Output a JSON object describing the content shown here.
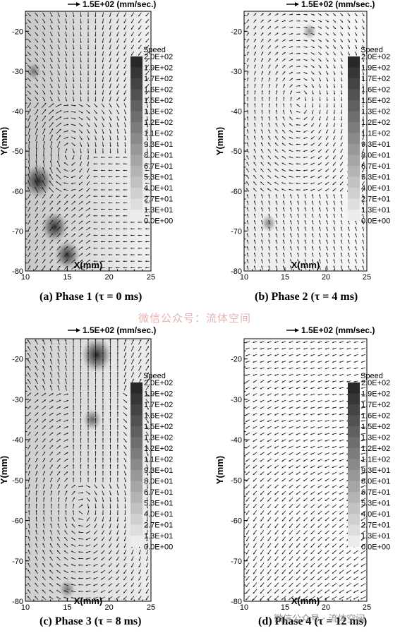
{
  "chart_data": [
    {
      "type": "vector-field",
      "caption": "(a) Phase 1 (τ = 0 ms)",
      "reference_vector": "1.5E+02 (mm/sec.)",
      "xlabel": "X(mm)",
      "ylabel": "Y(mm)",
      "xlim": [
        10,
        25
      ],
      "ylim": [
        -80,
        -15
      ],
      "x_ticks": [
        10,
        15,
        20,
        25
      ],
      "y_ticks": [
        -20,
        -30,
        -40,
        -50,
        -60,
        -70,
        -80
      ],
      "x_tick_labels": [
        "10",
        "15",
        "20",
        "25"
      ],
      "y_tick_labels": [
        "-20",
        "-30",
        "-40",
        "-50",
        "-60",
        "-70",
        "-80"
      ],
      "legend": {
        "title": "Speed",
        "levels": [
          "2.0E+02",
          "1.9E+02",
          "1.7E+02",
          "1.6E+02",
          "1.5E+02",
          "1.3E+02",
          "1.2E+02",
          "1.1E+02",
          "9.3E+01",
          "8.0E+01",
          "6.7E+01",
          "5.3E+01",
          "4.0E+01",
          "2.7E+01",
          "1.3E+01",
          "0.0E+00"
        ]
      },
      "speed_hotspots": [
        {
          "x": 11.5,
          "y": -57.5,
          "speed": 190
        },
        {
          "x": 13.5,
          "y": -69,
          "speed": 160
        },
        {
          "x": 15,
          "y": -76,
          "speed": 150
        },
        {
          "x": 11,
          "y": -30,
          "speed": 60
        }
      ]
    },
    {
      "type": "vector-field",
      "caption": "(b) Phase 2 (τ = 4 ms)",
      "reference_vector": "1.5E+02 (mm/sec.)",
      "xlabel": "X(mm)",
      "ylabel": "Y(mm)",
      "xlim": [
        10,
        25
      ],
      "ylim": [
        -80,
        -15
      ],
      "x_ticks": [
        10,
        15,
        20,
        25
      ],
      "y_ticks": [
        -20,
        -30,
        -40,
        -50,
        -60,
        -70,
        -80
      ],
      "x_tick_labels": [
        "10",
        "15",
        "20",
        "25"
      ],
      "y_tick_labels": [
        "-20",
        "-30",
        "-40",
        "-50",
        "-60",
        "-70",
        "-80"
      ],
      "legend": {
        "title": "Speed",
        "levels": [
          "2.0E+02",
          "1.9E+02",
          "1.7E+02",
          "1.6E+02",
          "1.5E+02",
          "1.3E+02",
          "1.2E+02",
          "1.1E+02",
          "9.3E+01",
          "8.0E+01",
          "6.7E+01",
          "5.3E+01",
          "4.0E+01",
          "2.7E+01",
          "1.3E+01",
          "0.0E+00"
        ]
      },
      "speed_hotspots": [
        {
          "x": 18,
          "y": -20,
          "speed": 50
        },
        {
          "x": 13,
          "y": -68,
          "speed": 60
        }
      ]
    },
    {
      "type": "vector-field",
      "caption": "(c) Phase 3 (τ = 8 ms)",
      "reference_vector": "1.5E+02 (mm/sec.)",
      "xlabel": "X(mm)",
      "ylabel": "Y(mm)",
      "xlim": [
        10,
        25
      ],
      "ylim": [
        -80,
        -15
      ],
      "x_ticks": [
        10,
        15,
        20,
        25
      ],
      "y_ticks": [
        -20,
        -30,
        -40,
        -50,
        -60,
        -70,
        -80
      ],
      "x_tick_labels": [
        "10",
        "15",
        "20",
        "25"
      ],
      "y_tick_labels": [
        "-20",
        "-30",
        "-40",
        "-50",
        "-60",
        "-70",
        "-80"
      ],
      "legend": {
        "title": "Speed",
        "levels": [
          "2.0E+02",
          "1.9E+02",
          "1.7E+02",
          "1.6E+02",
          "1.5E+02",
          "1.3E+02",
          "1.2E+02",
          "1.1E+02",
          "9.3E+01",
          "8.0E+01",
          "6.7E+01",
          "5.3E+01",
          "4.0E+01",
          "2.7E+01",
          "1.3E+01",
          "0.0E+00"
        ]
      },
      "speed_hotspots": [
        {
          "x": 18.5,
          "y": -19,
          "speed": 200
        },
        {
          "x": 18,
          "y": -35,
          "speed": 90
        },
        {
          "x": 15,
          "y": -77,
          "speed": 70
        }
      ]
    },
    {
      "type": "vector-field",
      "caption": "(d) Phase 4 (τ = 12 ms)",
      "reference_vector": "1.5E+02 (mm/sec.)",
      "xlabel": "X(mm)",
      "ylabel": "Y(mm)",
      "xlim": [
        10,
        25
      ],
      "ylim": [
        -80,
        -15
      ],
      "x_ticks": [
        10,
        15,
        20,
        25
      ],
      "y_ticks": [
        -20,
        -30,
        -40,
        -50,
        -60,
        -70,
        -80
      ],
      "x_tick_labels": [
        "10",
        "15",
        "20",
        "25"
      ],
      "y_tick_labels": [
        "-20",
        "-30",
        "-40",
        "-50",
        "-60",
        "-70",
        "-80"
      ],
      "legend": {
        "title": "Speed",
        "levels": [
          "2.0E+02",
          "1.9E+02",
          "1.7E+02",
          "1.6E+02",
          "1.5E+02",
          "1.3E+02",
          "1.2E+02",
          "1.1E+02",
          "9.3E+01",
          "8.0E+01",
          "6.7E+01",
          "5.3E+01",
          "4.0E+01",
          "2.7E+01",
          "1.3E+01",
          "0.0E+00"
        ]
      },
      "speed_hotspots": []
    }
  ],
  "watermark_center": "微信公众号：流体空间",
  "watermark_bottom": "微信公众号 · 流体空间"
}
